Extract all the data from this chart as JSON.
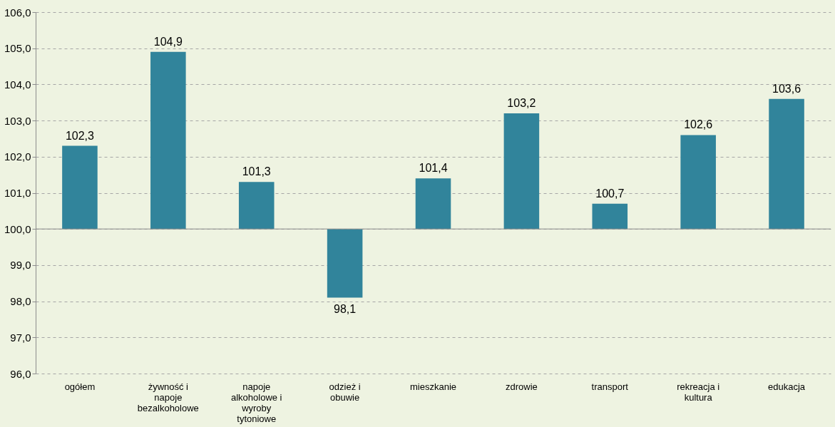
{
  "chart_data": {
    "type": "bar",
    "categories": [
      "ogółem",
      "żywność i\nnapoje\nbezalkoholowe",
      "napoje\nalkoholowe i\nwyroby\ntytoniowe",
      "odzież i\nobuwie",
      "mieszkanie",
      "zdrowie",
      "transport",
      "rekreacja i\nkultura",
      "edukacja"
    ],
    "values": [
      2.3,
      4.9,
      1.3,
      -1.9,
      1.4,
      3.2,
      0.7,
      2.6,
      3.6
    ],
    "base": [
      100,
      100,
      100,
      100,
      100,
      100,
      100,
      100,
      100
    ],
    "value_labels": [
      "102,3",
      "104,9",
      "101,3",
      "98,1",
      "101,4",
      "103,2",
      "100,7",
      "102,6",
      "103,6"
    ],
    "color": "#31849b",
    "ylim": [
      96,
      106
    ],
    "yticks": [
      {
        "value": 96,
        "label": "96,0"
      },
      {
        "value": 97,
        "label": "97,0"
      },
      {
        "value": 98,
        "label": "98,0"
      },
      {
        "value": 99,
        "label": "99,0"
      },
      {
        "value": 100,
        "label": "100,0"
      },
      {
        "value": 101,
        "label": "101,0"
      },
      {
        "value": 102,
        "label": "102,0"
      },
      {
        "value": 103,
        "label": "103,0"
      },
      {
        "value": 104,
        "label": "104,0"
      },
      {
        "value": 105,
        "label": "105,0"
      },
      {
        "value": 106,
        "label": "106,0"
      }
    ],
    "ref_lines": [
      {
        "axis": "y",
        "value": 100,
        "color": "#8c8c8c"
      }
    ],
    "grid": "y"
  }
}
